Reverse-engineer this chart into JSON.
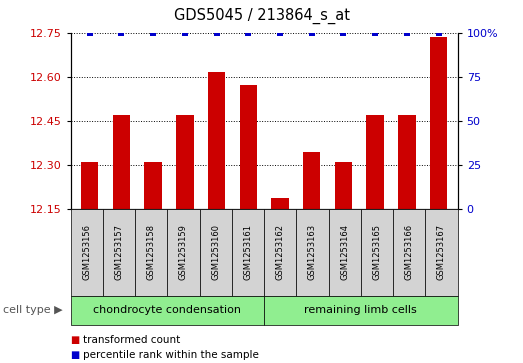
{
  "title": "GDS5045 / 213864_s_at",
  "samples": [
    "GSM1253156",
    "GSM1253157",
    "GSM1253158",
    "GSM1253159",
    "GSM1253160",
    "GSM1253161",
    "GSM1253162",
    "GSM1253163",
    "GSM1253164",
    "GSM1253165",
    "GSM1253166",
    "GSM1253167"
  ],
  "transformed_counts": [
    12.308,
    12.468,
    12.308,
    12.468,
    12.615,
    12.573,
    12.185,
    12.345,
    12.308,
    12.468,
    12.468,
    12.735
  ],
  "percentile_ranks": [
    100,
    100,
    100,
    100,
    100,
    100,
    100,
    100,
    100,
    100,
    100,
    100
  ],
  "group1_label": "chondrocyte condensation",
  "group2_label": "remaining limb cells",
  "group1_count": 6,
  "group2_count": 6,
  "ylim_left": [
    12.15,
    12.75
  ],
  "ylim_right": [
    0,
    100
  ],
  "yticks_left": [
    12.15,
    12.3,
    12.45,
    12.6,
    12.75
  ],
  "yticks_right": [
    0,
    25,
    50,
    75,
    100
  ],
  "ytick_right_labels": [
    "0",
    "25",
    "50",
    "75",
    "100%"
  ],
  "bar_color": "#cc0000",
  "dot_color": "#0000cc",
  "group1_bg": "#90ee90",
  "group2_bg": "#90ee90",
  "sample_bg": "#d3d3d3",
  "legend_bar_label": "transformed count",
  "legend_dot_label": "percentile rank within the sample",
  "cell_type_label": "cell type"
}
